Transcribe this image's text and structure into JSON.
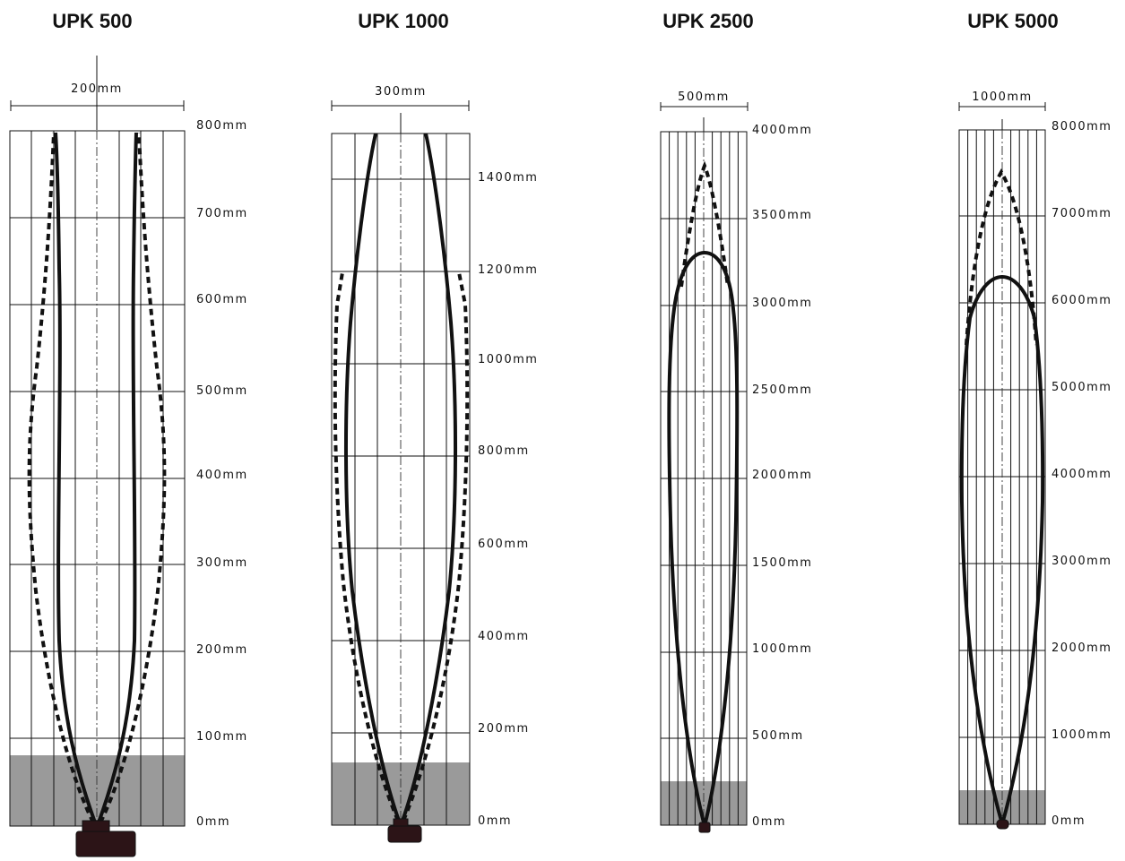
{
  "panels": [
    {
      "id": "upk500",
      "title": "UPK 500",
      "width_label": "200mm",
      "y_labels": [
        "800mm",
        "700mm",
        "600mm",
        "500mm",
        "400mm",
        "300mm",
        "200mm",
        "100mm",
        "0mm"
      ]
    },
    {
      "id": "upk1000",
      "title": "UPK 1000",
      "width_label": "300mm",
      "y_labels": [
        "1400mm",
        "1200mm",
        "1000mm",
        "800mm",
        "600mm",
        "400mm",
        "200mm",
        "0mm"
      ]
    },
    {
      "id": "upk2500",
      "title": "UPK 2500",
      "width_label": "500mm",
      "y_labels": [
        "4000mm",
        "3500mm",
        "3000mm",
        "2500mm",
        "2000mm",
        "1500mm",
        "1000mm",
        "500mm",
        "0mm"
      ]
    },
    {
      "id": "upk5000",
      "title": "UPK 5000",
      "width_label": "1000mm",
      "y_labels": [
        "8000mm",
        "7000mm",
        "6000mm",
        "5000mm",
        "4000mm",
        "3000mm",
        "2000mm",
        "1000mm",
        "0mm"
      ]
    }
  ]
}
